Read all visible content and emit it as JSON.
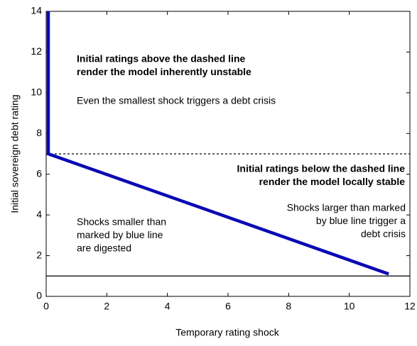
{
  "chart_data": {
    "type": "line",
    "x_label": "Temporary rating shock",
    "y_label": "Initial sovereign debt rating",
    "xlim": [
      0,
      12
    ],
    "ylim": [
      0,
      14
    ],
    "xticks": [
      0,
      2,
      4,
      6,
      8,
      10,
      12
    ],
    "yticks": [
      0,
      2,
      4,
      6,
      8,
      10,
      12,
      14
    ],
    "series": [
      {
        "color": "#0a0ab4",
        "x": [
          0.07,
          0.07,
          11.3
        ],
        "values": [
          14,
          7,
          1.1
        ]
      }
    ],
    "reference_lines": [
      {
        "value": 7,
        "style": "dashed"
      },
      {
        "value": 1,
        "style": "solid"
      }
    ],
    "annotations": [
      {
        "lines": [
          "Initial ratings above the dashed line",
          "render the model inherently unstable"
        ],
        "bold": true
      },
      {
        "lines": [
          "Even the smallest shock triggers a debt crisis"
        ],
        "bold": false
      },
      {
        "lines": [
          "Initial ratings below the dashed line",
          "render the model locally stable"
        ],
        "bold": true
      },
      {
        "lines": [
          "Shocks smaller than",
          "marked by blue line",
          "are digested"
        ],
        "bold": false
      },
      {
        "lines": [
          "Shocks larger than marked",
          "by blue line trigger a",
          "debt crisis"
        ],
        "bold": false
      }
    ]
  }
}
